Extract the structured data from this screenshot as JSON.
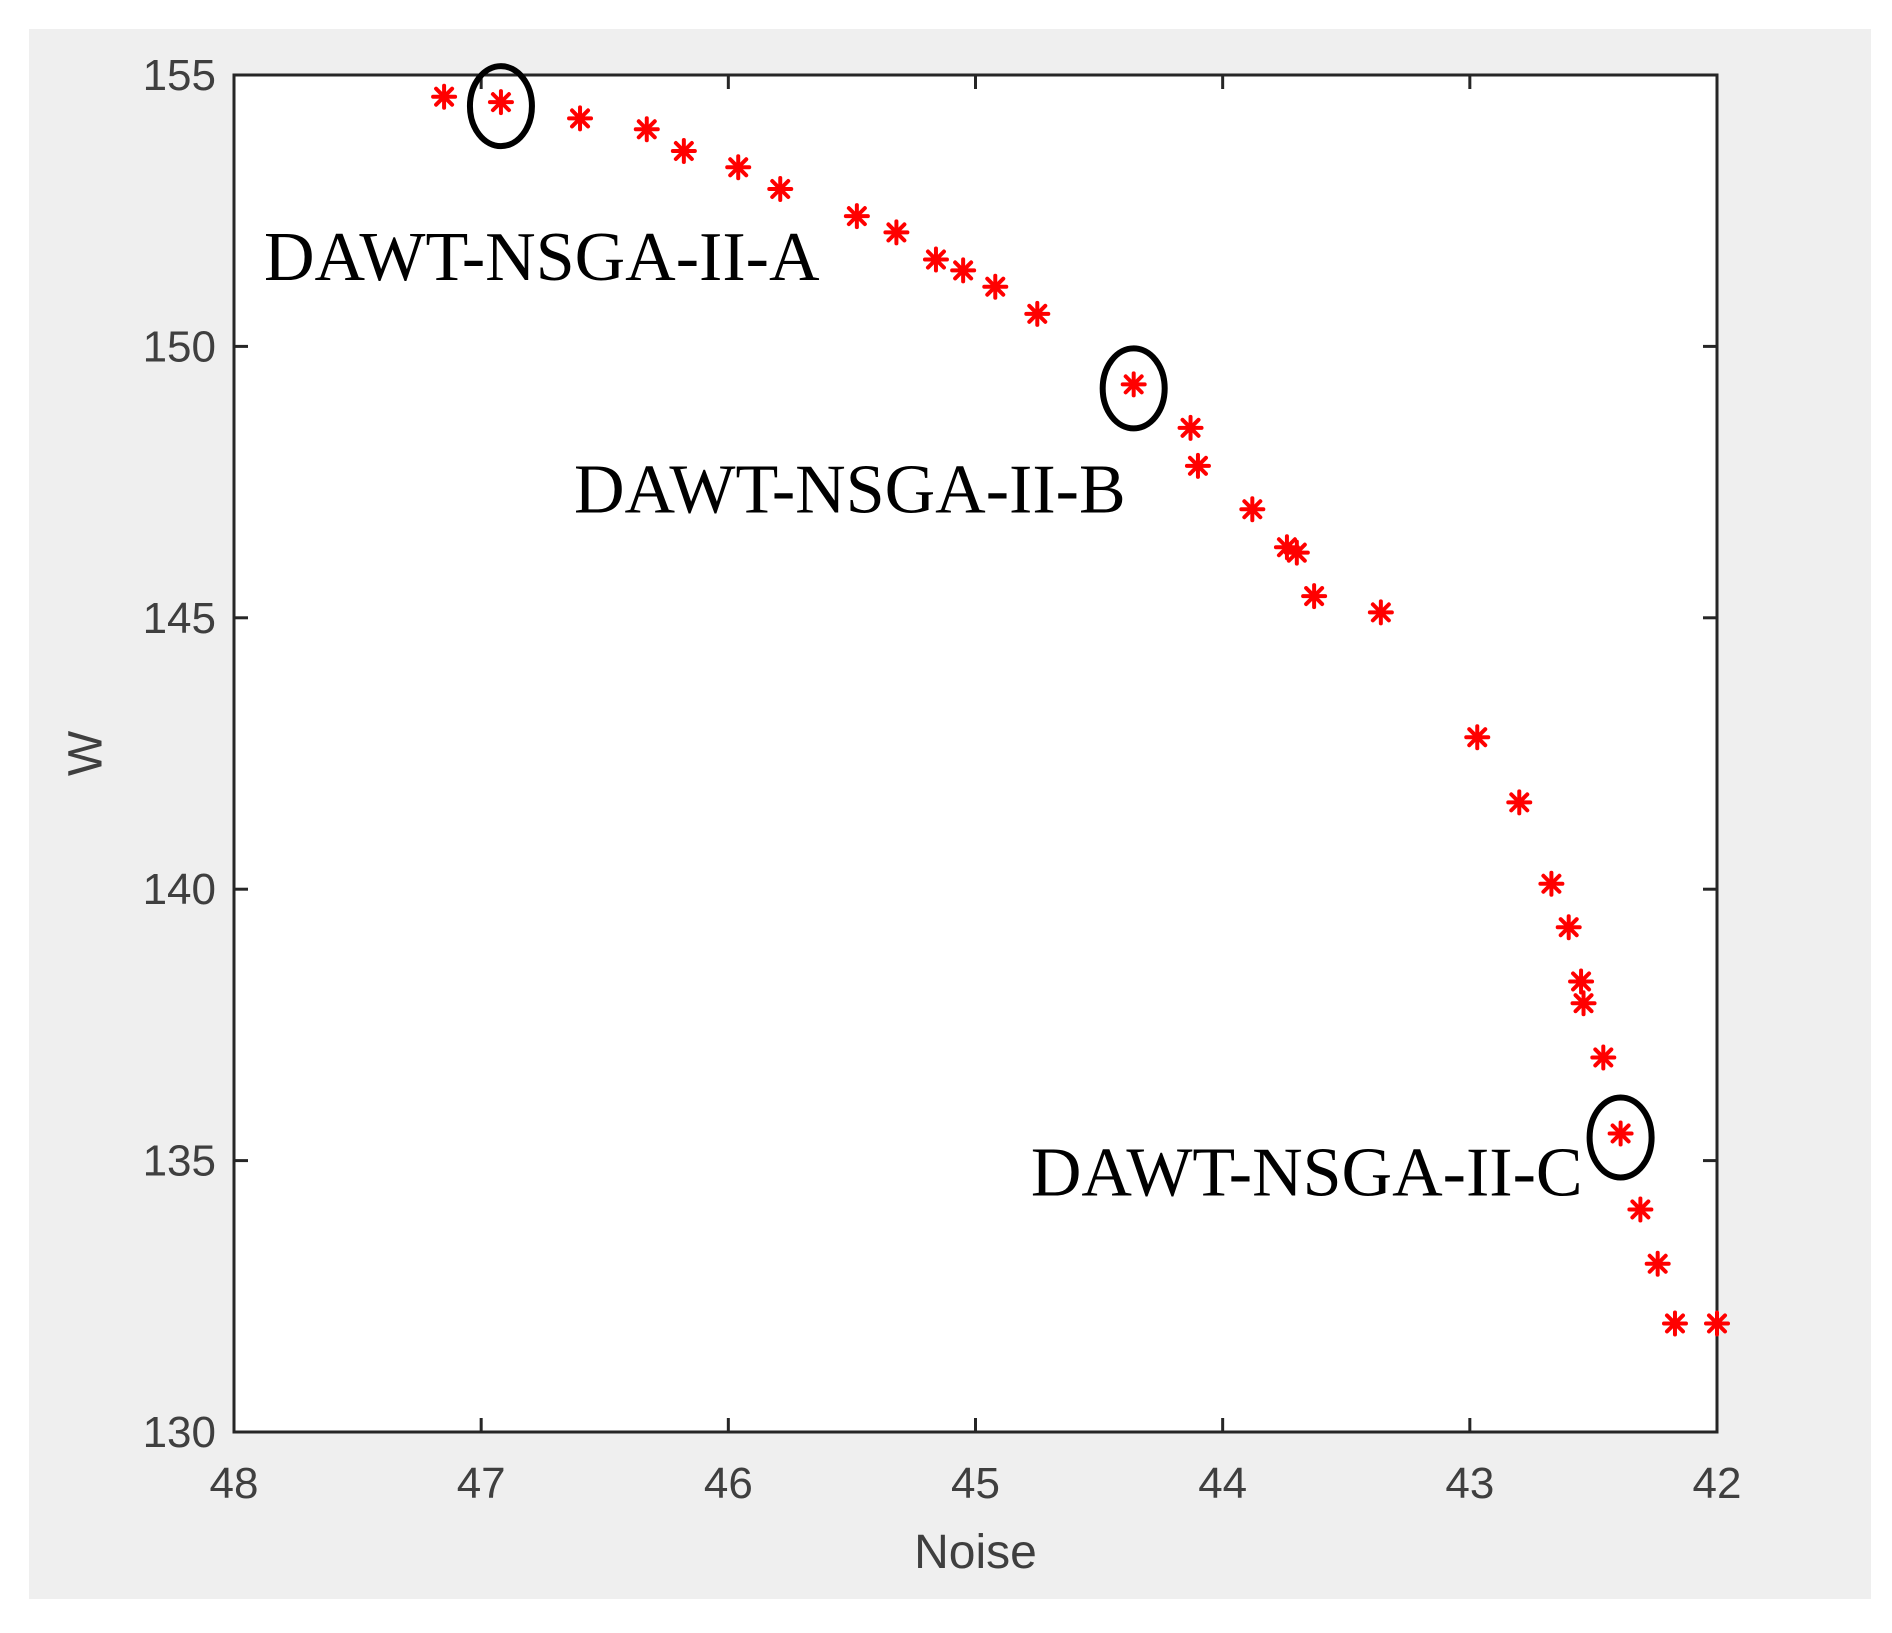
{
  "chart_data": {
    "type": "scatter",
    "xlabel": "Noise",
    "ylabel": "W",
    "xlim": [
      48,
      42
    ],
    "ylim": [
      130,
      155
    ],
    "x_reversed": true,
    "xticks": [
      "48",
      "47",
      "46",
      "45",
      "44",
      "43",
      "42"
    ],
    "yticks": [
      "130",
      "135",
      "140",
      "145",
      "150",
      "155"
    ],
    "grid": false,
    "marker_color": "#ff0000",
    "highlight_color": "#000000",
    "panel_background": "#efefef",
    "series": [
      {
        "marker": "star",
        "points": [
          [
            47.15,
            154.6
          ],
          [
            46.92,
            154.5
          ],
          [
            46.6,
            154.2
          ],
          [
            46.33,
            154.0
          ],
          [
            46.18,
            153.6
          ],
          [
            45.96,
            153.3
          ],
          [
            45.79,
            152.9
          ],
          [
            45.48,
            152.4
          ],
          [
            45.32,
            152.1
          ],
          [
            45.16,
            151.6
          ],
          [
            45.05,
            151.4
          ],
          [
            44.92,
            151.1
          ],
          [
            44.75,
            150.6
          ],
          [
            44.36,
            149.3
          ],
          [
            44.13,
            148.5
          ],
          [
            44.1,
            147.8
          ],
          [
            43.88,
            147.0
          ],
          [
            43.74,
            146.3
          ],
          [
            43.7,
            146.2
          ],
          [
            43.63,
            145.4
          ],
          [
            43.36,
            145.1
          ],
          [
            42.97,
            142.8
          ],
          [
            42.8,
            141.6
          ],
          [
            42.67,
            140.1
          ],
          [
            42.6,
            139.3
          ],
          [
            42.55,
            138.3
          ],
          [
            42.54,
            137.9
          ],
          [
            42.46,
            136.9
          ],
          [
            42.39,
            135.5
          ],
          [
            42.31,
            134.1
          ],
          [
            42.24,
            133.1
          ],
          [
            42.17,
            132.0
          ],
          [
            42.0,
            132.0
          ]
        ]
      }
    ],
    "highlighted": [
      {
        "x": 46.92,
        "y": 154.5,
        "label": "DAWT-NSGA-II-A"
      },
      {
        "x": 44.36,
        "y": 149.3,
        "label": "DAWT-NSGA-II-B"
      },
      {
        "x": 42.39,
        "y": 135.5,
        "label": "DAWT-NSGA-II-C"
      }
    ]
  }
}
